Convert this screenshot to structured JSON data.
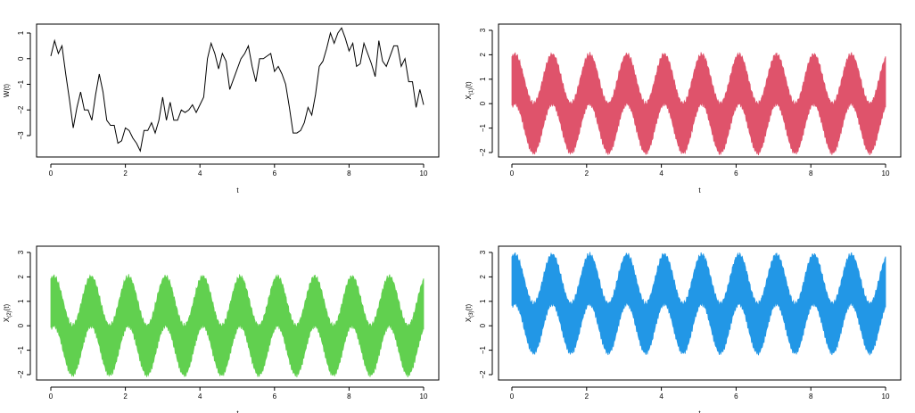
{
  "chart_data": [
    {
      "type": "line",
      "xlabel": "t",
      "ylabel_main": "W(t)",
      "ylabel_sub": "",
      "xlim": [
        0,
        10
      ],
      "ylim": [
        -3.6,
        1.4
      ],
      "xticks": [
        0,
        2,
        4,
        6,
        8,
        10
      ],
      "yticks": [
        -3,
        -2,
        -1,
        0,
        1
      ],
      "xtick_labels": [
        "0",
        "2",
        "4",
        "6",
        "8",
        "10"
      ],
      "ytick_labels": [
        "−3",
        "−2",
        "−1",
        "0",
        "1"
      ],
      "color": "#000000",
      "series": [
        {
          "x": [
            0,
            0.1,
            0.2,
            0.3,
            0.4,
            0.5,
            0.6,
            0.7,
            0.8,
            0.9,
            1,
            1.1,
            1.2,
            1.3,
            1.4,
            1.5,
            1.6,
            1.7,
            1.8,
            1.9,
            2,
            2.1,
            2.2,
            2.3,
            2.4,
            2.5,
            2.6,
            2.7,
            2.8,
            2.9,
            3,
            3.1,
            3.2,
            3.3,
            3.4,
            3.5,
            3.6,
            3.7,
            3.8,
            3.9,
            4,
            4.1,
            4.2,
            4.3,
            4.4,
            4.5,
            4.6,
            4.7,
            4.8,
            4.9,
            5,
            5.1,
            5.2,
            5.3,
            5.4,
            5.5,
            5.6,
            5.7,
            5.8,
            5.9,
            6,
            6.1,
            6.2,
            6.3,
            6.4,
            6.5,
            6.6,
            6.7,
            6.8,
            6.9,
            7,
            7.1,
            7.2,
            7.3,
            7.4,
            7.5,
            7.6,
            7.7,
            7.8,
            7.9,
            8,
            8.1,
            8.2,
            8.3,
            8.4,
            8.5,
            8.6,
            8.7,
            8.8,
            8.9,
            9,
            9.1,
            9.2,
            9.3,
            9.4,
            9.5,
            9.6,
            9.7,
            9.8,
            9.9,
            10
          ],
          "y": [
            0.1,
            0.7,
            0.2,
            0.5,
            -0.6,
            -1.6,
            -2.7,
            -1.9,
            -1.3,
            -2.0,
            -2.0,
            -2.4,
            -1.4,
            -0.6,
            -1.3,
            -2.4,
            -2.6,
            -2.6,
            -3.3,
            -3.2,
            -2.7,
            -2.8,
            -3.1,
            -3.3,
            -3.6,
            -2.8,
            -2.8,
            -2.5,
            -2.9,
            -2.4,
            -1.5,
            -2.4,
            -1.7,
            -2.4,
            -2.4,
            -2.0,
            -2.1,
            -2.0,
            -1.8,
            -2.1,
            -1.8,
            -1.5,
            0.0,
            0.6,
            0.2,
            -0.4,
            0.2,
            -0.1,
            -1.2,
            -0.8,
            -0.4,
            0.0,
            0.2,
            0.5,
            -0.3,
            -0.9,
            0.0,
            0.0,
            0.1,
            0.2,
            -0.5,
            -0.3,
            -0.6,
            -1.0,
            -1.9,
            -2.9,
            -2.9,
            -2.8,
            -2.5,
            -1.9,
            -2.2,
            -1.4,
            -0.3,
            -0.1,
            0.4,
            1.0,
            0.6,
            1.0,
            1.2,
            0.8,
            0.3,
            0.6,
            -0.3,
            -0.2,
            0.6,
            0.2,
            -0.2,
            -0.7,
            0.7,
            -0.1,
            -0.3,
            0.1,
            0.5,
            0.5,
            -0.3,
            0.0,
            -0.9,
            -0.9,
            -1.9,
            -1.2,
            -1.8
          ]
        }
      ]
    },
    {
      "type": "area",
      "xlabel": "t",
      "ylabel_main": "X",
      "ylabel_sub": "(1)",
      "ylabel_tail": "(t)",
      "xlim": [
        0,
        10
      ],
      "ylim": [
        -2.1,
        3.3
      ],
      "xticks": [
        0,
        2,
        4,
        6,
        8,
        10
      ],
      "yticks": [
        -2,
        -1,
        0,
        1,
        2,
        3
      ],
      "xtick_labels": [
        "0",
        "2",
        "4",
        "6",
        "8",
        "10"
      ],
      "ytick_labels": [
        "−2",
        "−1",
        "0",
        "1",
        "2",
        "3"
      ],
      "color": "#df536b",
      "band": {
        "center_offset": 0.0,
        "amplitude": 1.0,
        "cycles_per_unit": 1.0,
        "half_width": 1.0
      }
    },
    {
      "type": "area",
      "xlabel": "t",
      "ylabel_main": "X",
      "ylabel_sub": "(2)",
      "ylabel_tail": "(t)",
      "xlim": [
        0,
        10
      ],
      "ylim": [
        -2.1,
        3.3
      ],
      "xticks": [
        0,
        2,
        4,
        6,
        8,
        10
      ],
      "yticks": [
        -2,
        -1,
        0,
        1,
        2,
        3
      ],
      "xtick_labels": [
        "0",
        "2",
        "4",
        "6",
        "8",
        "10"
      ],
      "ytick_labels": [
        "−2",
        "−1",
        "0",
        "1",
        "2",
        "3"
      ],
      "color": "#61d04f",
      "band": {
        "center_offset": 0.0,
        "amplitude": 1.0,
        "cycles_per_unit": 1.0,
        "half_width": 1.0
      }
    },
    {
      "type": "area",
      "xlabel": "t",
      "ylabel_main": "X",
      "ylabel_sub": "(3)",
      "ylabel_tail": "(t)",
      "xlim": [
        0,
        10
      ],
      "ylim": [
        -2.1,
        3.3
      ],
      "xticks": [
        0,
        2,
        4,
        6,
        8,
        10
      ],
      "yticks": [
        -2,
        -1,
        0,
        1,
        2,
        3
      ],
      "xtick_labels": [
        "0",
        "2",
        "4",
        "6",
        "8",
        "10"
      ],
      "ytick_labels": [
        "−2",
        "−1",
        "0",
        "1",
        "2",
        "3"
      ],
      "color": "#2297e6",
      "band": {
        "center_offset": 0.9,
        "amplitude": 1.0,
        "cycles_per_unit": 1.0,
        "half_width": 1.0
      }
    }
  ]
}
